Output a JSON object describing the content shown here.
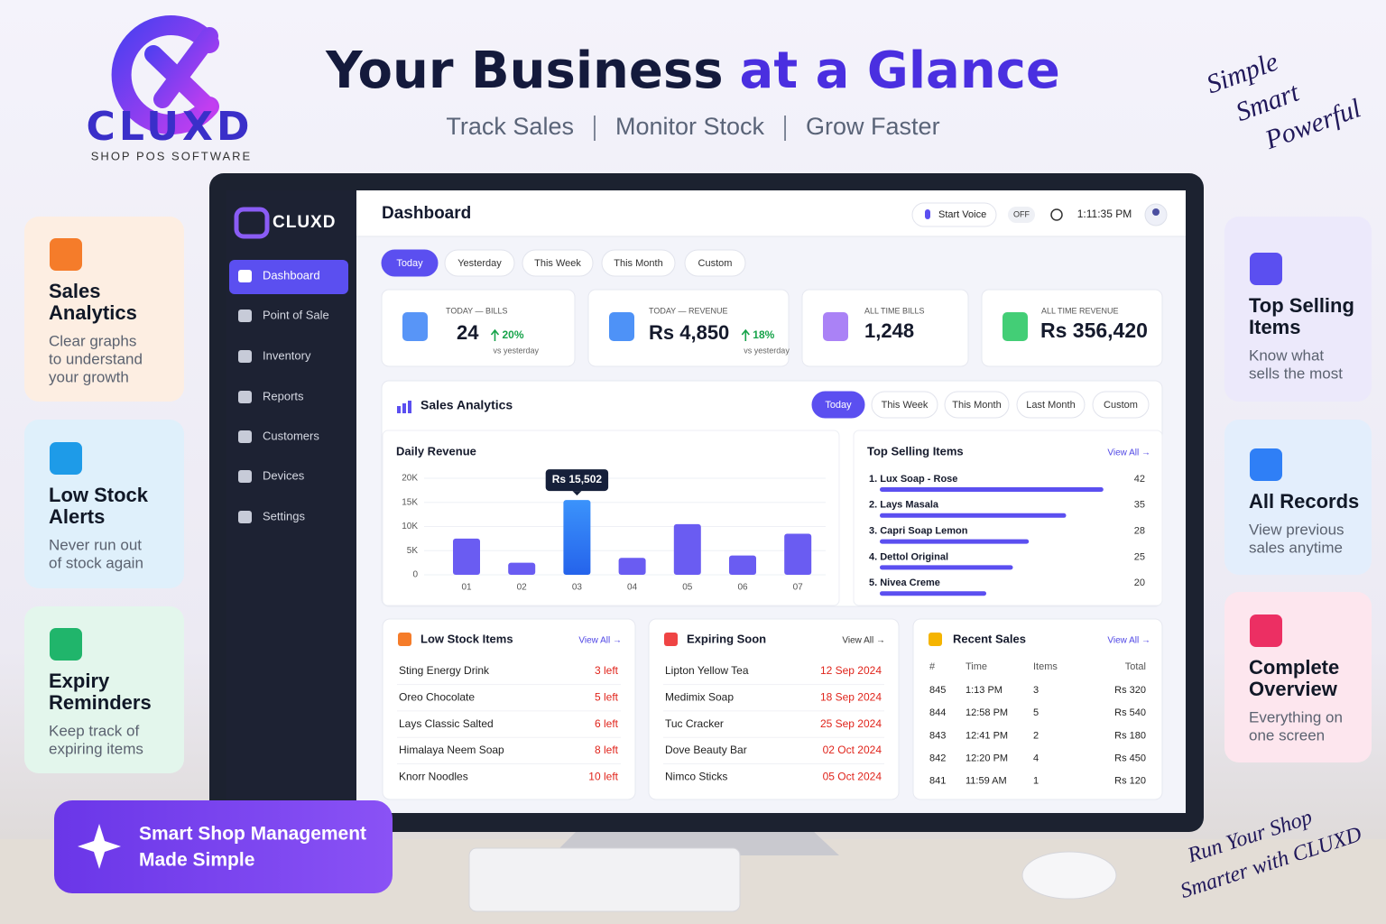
{
  "brand": {
    "name": "CLUXD",
    "tagline": "SHOP POS SOFTWARE"
  },
  "hero": {
    "title_a": "Your Business",
    "title_b": "at a Glance",
    "subtitle": [
      "Track Sales",
      "Monitor Stock",
      "Grow Faster"
    ]
  },
  "slogan": [
    "Simple",
    "Smart",
    "Powerful"
  ],
  "features_left": [
    {
      "title": [
        "Sales",
        "Analytics"
      ],
      "text": [
        "Clear graphs",
        "to understand",
        "your growth"
      ]
    },
    {
      "title": [
        "Low Stock",
        "Alerts"
      ],
      "text": [
        "Never run out",
        "of stock again"
      ]
    },
    {
      "title": [
        "Expiry",
        "Reminders"
      ],
      "text": [
        "Keep track of",
        "expiring items"
      ]
    }
  ],
  "features_right": [
    {
      "title": [
        "Top Selling",
        "Items"
      ],
      "text": [
        "Know what",
        "sells the most"
      ]
    },
    {
      "title": [
        "All Records"
      ],
      "text": [
        "View previous",
        "sales anytime"
      ]
    },
    {
      "title": [
        "Complete",
        "Overview"
      ],
      "text": [
        "Everything on",
        "one screen"
      ]
    }
  ],
  "banner": [
    "Smart Shop Management",
    "Made Simple"
  ],
  "footer_slogan": [
    "Run Your Shop",
    "Smarter with CLUXD"
  ],
  "app": {
    "brand": "CLUXD",
    "nav": [
      "Dashboard",
      "Point of Sale",
      "Inventory",
      "Reports",
      "Customers",
      "Devices",
      "Settings"
    ],
    "page_title": "Dashboard",
    "voice": "Start Voice",
    "voice_state": "OFF",
    "clock": "1:11:35 PM",
    "range_tabs": [
      "Today",
      "Yesterday",
      "This Week",
      "This Month",
      "Custom"
    ],
    "kpis": [
      {
        "label": "TODAY — BILLS",
        "value": "24",
        "change": "20%",
        "note": "vs yesterday"
      },
      {
        "label": "TODAY — REVENUE",
        "value": "Rs 4,850",
        "change": "18%",
        "note": "vs yesterday"
      },
      {
        "label": "ALL TIME BILLS",
        "value": "1,248"
      },
      {
        "label": "ALL TIME REVENUE",
        "value": "Rs 356,420"
      }
    ],
    "analytics": {
      "title": "Sales Analytics",
      "tabs": [
        "Today",
        "This Week",
        "This Month",
        "Last Month",
        "Custom"
      ]
    },
    "low_stock": {
      "title": "Low Stock Items",
      "view_all": "View All →",
      "rows": [
        [
          "Sting Energy Drink",
          "3 left"
        ],
        [
          "Oreo Chocolate",
          "5 left"
        ],
        [
          "Lays Classic Salted",
          "6 left"
        ],
        [
          "Himalaya Neem Soap",
          "8 left"
        ],
        [
          "Knorr Noodles",
          "10 left"
        ]
      ]
    },
    "expiring": {
      "title": "Expiring Soon",
      "view_all": "View All →",
      "rows": [
        [
          "Lipton Yellow Tea",
          "12 Sep 2024"
        ],
        [
          "Medimix Soap",
          "18 Sep 2024"
        ],
        [
          "Tuc Cracker",
          "25 Sep 2024"
        ],
        [
          "Dove Beauty Bar",
          "02 Oct 2024"
        ],
        [
          "Nimco Sticks",
          "05 Oct 2024"
        ]
      ]
    },
    "recent": {
      "title": "Recent Sales",
      "view_all": "View All →",
      "columns": [
        "#",
        "Time",
        "Items",
        "Total"
      ],
      "rows": [
        [
          "845",
          "1:13 PM",
          "3",
          "Rs 320"
        ],
        [
          "844",
          "12:58 PM",
          "5",
          "Rs 540"
        ],
        [
          "843",
          "12:41 PM",
          "2",
          "Rs 180"
        ],
        [
          "842",
          "12:20 PM",
          "4",
          "Rs 450"
        ],
        [
          "841",
          "11:59 AM",
          "1",
          "Rs 120"
        ]
      ]
    }
  },
  "chart_data": [
    {
      "type": "bar",
      "title": "Daily Revenue",
      "categories": [
        "01",
        "02",
        "03",
        "04",
        "05",
        "06",
        "07"
      ],
      "values": [
        7500,
        2500,
        15502,
        3500,
        10500,
        4000,
        8500
      ],
      "value_labels": [
        null,
        null,
        "Rs 15,502",
        null,
        null,
        null,
        null
      ],
      "color": "#6a5cf2",
      "highlight_color": "#2f7ff6",
      "ylim": [
        0,
        20000
      ],
      "yticks": [
        0,
        {
          "value": 5000,
          "label": "5K"
        },
        {
          "value": 10000,
          "label": "10K"
        },
        {
          "value": 15000,
          "label": "15K"
        },
        {
          "value": 20000,
          "label": "20K"
        }
      ],
      "grid": true
    },
    {
      "type": "hbar",
      "title": "Top Selling Items",
      "link": "View All →",
      "categories": [
        "1. Lux Soap - Rose",
        "2. Lays Masala",
        "3. Capri Soap Lemon",
        "4. Dettol Original",
        "5. Nivea Creme"
      ],
      "values": [
        42,
        35,
        28,
        25,
        20
      ],
      "color": "#5b4ff0",
      "xlim": [
        0,
        50
      ]
    }
  ]
}
